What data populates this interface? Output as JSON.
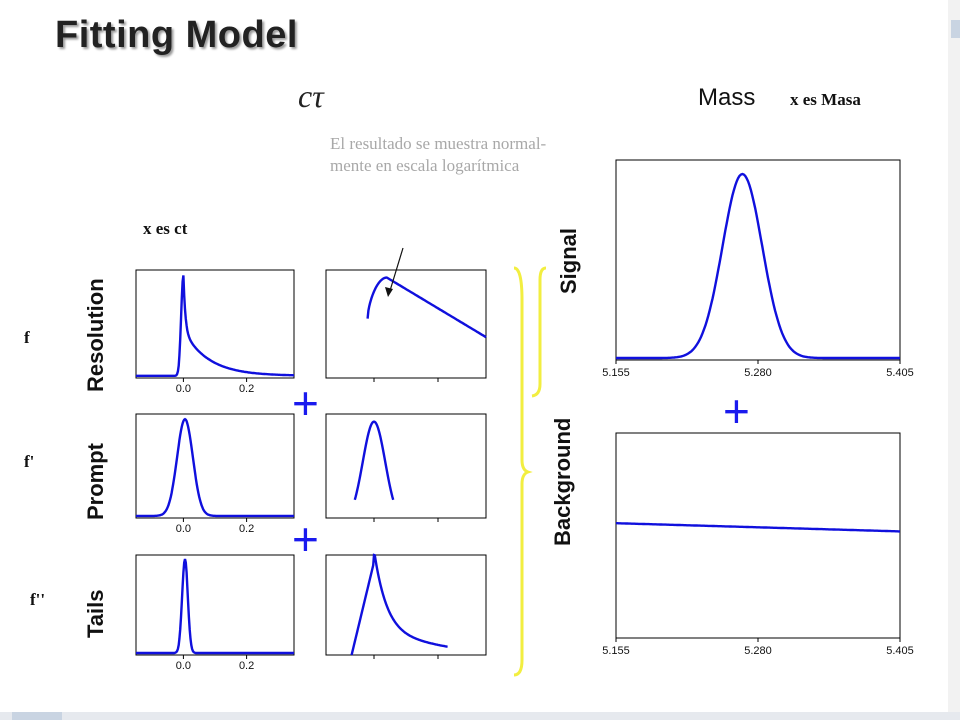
{
  "slide": {
    "title": "Fitting Model",
    "ct_symbol": "cτ",
    "mass_heading": "Mass",
    "x_es_masa": "x es  Masa",
    "x_es_ct": "x es  ct",
    "note": "El resultado se muestra normal-mente en escala logarítmica"
  },
  "rows": {
    "resolution": "Resolution",
    "prompt": "Prompt",
    "tails": "Tails",
    "signal": "Signal",
    "background": "Background"
  },
  "functions": {
    "f1": "f",
    "f2": "f'",
    "f3": "f''"
  },
  "plus_sign": "+",
  "ct_ticks": [
    "0.0",
    "0.2"
  ],
  "mass_ticks": [
    "5.155",
    "5.280",
    "5.405"
  ],
  "colors": {
    "curve": "#1010dd",
    "plus": "#1a1aee",
    "brace": "#f2ee40"
  }
}
